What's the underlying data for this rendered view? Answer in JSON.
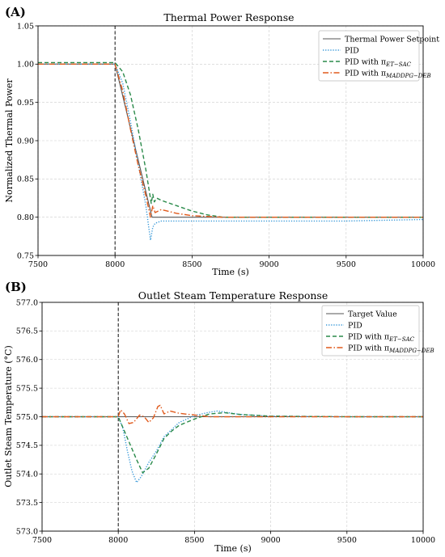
{
  "chart_data": [
    {
      "panel_label": "(A)",
      "type": "line",
      "title": "Thermal Power Response",
      "xlabel": "Time (s)",
      "ylabel": "Normalized Thermal Power",
      "xlim": [
        7500,
        10000
      ],
      "ylim": [
        0.75,
        1.05
      ],
      "xticks": [
        "7500",
        "8000",
        "8500",
        "9000",
        "9500",
        "10000"
      ],
      "yticks": [
        "0.75",
        "0.80",
        "0.85",
        "0.90",
        "0.95",
        "1.00",
        "1.05"
      ],
      "grid": true,
      "legend_position": "top-right",
      "vline_x": 8000,
      "series": [
        {
          "name": "Thermal Power Setpoint",
          "color": "#555555",
          "style": "solid",
          "x": [
            7500,
            8000,
            8240,
            10000
          ],
          "y": [
            1.0,
            1.0,
            0.8,
            0.8
          ]
        },
        {
          "name": "PID",
          "color": "#3a9ad9",
          "style": "dotted",
          "x": [
            7500,
            8000,
            8050,
            8100,
            8150,
            8200,
            8230,
            8245,
            8260,
            8300,
            8400,
            8500,
            8700,
            9000,
            9500,
            10000
          ],
          "y": [
            1.0,
            1.0,
            0.975,
            0.925,
            0.87,
            0.815,
            0.77,
            0.787,
            0.792,
            0.795,
            0.795,
            0.795,
            0.795,
            0.795,
            0.795,
            0.797
          ]
        },
        {
          "name": "PID with π",
          "name_sub": "ET−SAC",
          "color": "#2a8a4a",
          "style": "dashed",
          "x": [
            7500,
            8000,
            8050,
            8100,
            8150,
            8200,
            8235,
            8245,
            8255,
            8270,
            8300,
            8400,
            8500,
            8600,
            8700,
            9000,
            10000
          ],
          "y": [
            1.002,
            1.002,
            0.99,
            0.96,
            0.915,
            0.862,
            0.818,
            0.83,
            0.82,
            0.825,
            0.822,
            0.815,
            0.808,
            0.803,
            0.8,
            0.8,
            0.8
          ]
        },
        {
          "name": "PID with π",
          "name_sub": "MADDPG−DEB",
          "color": "#e05a1c",
          "style": "dashdot",
          "x": [
            7500,
            8000,
            8050,
            8100,
            8150,
            8200,
            8230,
            8245,
            8260,
            8300,
            8400,
            8500,
            8700,
            9000,
            10000
          ],
          "y": [
            1.0,
            1.0,
            0.965,
            0.915,
            0.868,
            0.828,
            0.8,
            0.815,
            0.806,
            0.81,
            0.805,
            0.802,
            0.8,
            0.8,
            0.8
          ]
        }
      ]
    },
    {
      "panel_label": "(B)",
      "type": "line",
      "title": "Outlet Steam Temperature Response",
      "xlabel": "Time (s)",
      "ylabel": "Outlet Steam Temperature (°C)",
      "xlim": [
        7500,
        10000
      ],
      "ylim": [
        573.0,
        577.0
      ],
      "xticks": [
        "7500",
        "8000",
        "8500",
        "9000",
        "9500",
        "10000"
      ],
      "yticks": [
        "573.0",
        "573.5",
        "574.0",
        "574.5",
        "575.0",
        "575.5",
        "576.0",
        "576.5",
        "577.0"
      ],
      "grid": true,
      "legend_position": "top-right",
      "vline_x": 8000,
      "series": [
        {
          "name": "Target Value",
          "color": "#555555",
          "style": "solid",
          "x": [
            7500,
            10000
          ],
          "y": [
            575.0,
            575.0
          ]
        },
        {
          "name": "PID",
          "color": "#3a9ad9",
          "style": "dotted",
          "x": [
            7500,
            8000,
            8030,
            8060,
            8090,
            8120,
            8150,
            8200,
            8250,
            8300,
            8400,
            8500,
            8600,
            8650,
            8700,
            8800,
            9000,
            9500,
            10000
          ],
          "y": [
            575.0,
            575.0,
            574.8,
            574.4,
            574.05,
            573.85,
            573.95,
            574.2,
            574.4,
            574.65,
            574.9,
            575.02,
            575.08,
            575.1,
            575.08,
            575.04,
            575.01,
            575.0,
            575.0
          ]
        },
        {
          "name": "PID with π",
          "name_sub": "ET−SAC",
          "color": "#2a8a4a",
          "style": "dashed",
          "x": [
            7500,
            8000,
            8040,
            8080,
            8120,
            8160,
            8200,
            8250,
            8300,
            8350,
            8400,
            8500,
            8600,
            8700,
            8800,
            9000,
            9500,
            10000
          ],
          "y": [
            575.0,
            575.0,
            574.75,
            574.5,
            574.25,
            574.02,
            574.1,
            574.35,
            574.62,
            574.75,
            574.85,
            574.96,
            575.05,
            575.07,
            575.04,
            575.01,
            575.0,
            575.0
          ]
        },
        {
          "name": "PID with π",
          "name_sub": "MADDPG−DEB",
          "color": "#e05a1c",
          "style": "dashdot",
          "x": [
            7500,
            8000,
            8015,
            8040,
            8070,
            8100,
            8140,
            8170,
            8200,
            8230,
            8260,
            8275,
            8300,
            8340,
            8400,
            8500,
            8600,
            8800,
            9000,
            10000
          ],
          "y": [
            575.0,
            575.0,
            575.12,
            575.05,
            574.88,
            574.9,
            575.03,
            575.0,
            574.9,
            574.98,
            575.18,
            575.2,
            575.05,
            575.1,
            575.06,
            575.03,
            575.0,
            575.0,
            575.0,
            575.0
          ]
        }
      ]
    }
  ]
}
